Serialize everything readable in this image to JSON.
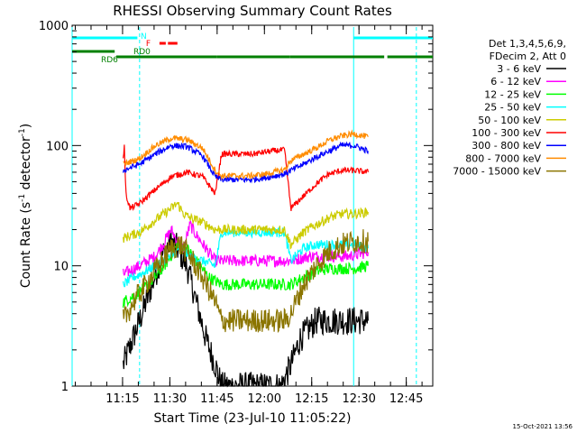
{
  "chart_data": {
    "type": "line",
    "title": "RHESSI Observing Summary Count Rates",
    "xlabel": "Start Time (23-Jul-10 11:05:22)",
    "ylabel": "Count Rate (s⁻¹ detector⁻¹)",
    "ylabel_parts": {
      "pre": "Count Rate (s",
      "sup1": "-1",
      "mid": " detector",
      "sup2": "-1",
      "post": ")"
    },
    "yscale": "log",
    "ylim": [
      1,
      1000
    ],
    "xlim_minutes": [
      -1.4,
      113.0
    ],
    "x_ticks": [
      {
        "t": 14.6,
        "label": "11:15"
      },
      {
        "t": 29.6,
        "label": "11:30"
      },
      {
        "t": 44.6,
        "label": "11:45"
      },
      {
        "t": 59.6,
        "label": "12:00"
      },
      {
        "t": 74.6,
        "label": "12:15"
      },
      {
        "t": 89.6,
        "label": "12:30"
      },
      {
        "t": 104.6,
        "label": "12:45"
      }
    ],
    "y_ticks": [
      {
        "v": 1,
        "label": "1"
      },
      {
        "v": 10,
        "label": "10"
      },
      {
        "v": 100,
        "label": "100"
      },
      {
        "v": 1000,
        "label": "1000"
      }
    ],
    "legend": {
      "header1": "Det 1,3,4,5,6,9,",
      "header2": "FDecim 2, Att 0",
      "position": "right",
      "entries": [
        {
          "label": "3 - 6 keV",
          "color": "#000000"
        },
        {
          "label": "6 - 12 keV",
          "color": "#ff00ff"
        },
        {
          "label": "12 - 25 keV",
          "color": "#00ff00"
        },
        {
          "label": "25 - 50 keV",
          "color": "#00ffff"
        },
        {
          "label": "50 - 100 keV",
          "color": "#cccc00"
        },
        {
          "label": "100 - 300 keV",
          "color": "#ff0000"
        },
        {
          "label": "300 - 800 keV",
          "color": "#0000ff"
        },
        {
          "label": "800 - 7000 keV",
          "color": "#ff8c00"
        },
        {
          "label": "7000 - 15000 keV",
          "color": "#8b7500"
        }
      ]
    },
    "flag_bars": [
      {
        "label": "N",
        "color": "#00ffff",
        "segments": [
          [
            -1.4,
            19.3
          ],
          [
            87.9,
            113.0
          ]
        ]
      },
      {
        "label": "F",
        "color": "#ff0000",
        "segments": [
          [
            26.3,
            28.3
          ],
          [
            29.0,
            32.0
          ]
        ]
      },
      {
        "label": "RD0",
        "color": "#008000",
        "segments": [
          [
            -1.4,
            12.1
          ]
        ]
      },
      {
        "label": "RD6",
        "color": "#008000",
        "segments": [
          [
            12.6,
            44.6
          ],
          [
            44.6,
            67.6
          ],
          [
            67.6,
            97.6
          ],
          [
            98.6,
            113.0
          ]
        ]
      }
    ],
    "vertical_lines": [
      {
        "t": -1.4,
        "color": "#00ffff",
        "style": "solid"
      },
      {
        "t": 20.0,
        "color": "#00ffff",
        "style": "dashed"
      },
      {
        "t": 87.9,
        "color": "#00ffff",
        "style": "solid"
      },
      {
        "t": 107.8,
        "color": "#00ffff",
        "style": "dashed"
      }
    ],
    "data_interval_minutes": [
      14.8,
      92.5
    ],
    "series": [
      {
        "name": "3 - 6 keV",
        "color": "#000000",
        "noise": 0.12,
        "x": [
          14.8,
          20,
          24,
          27,
          30,
          32,
          35,
          38,
          41,
          44,
          46,
          55,
          60,
          65,
          68,
          71,
          76,
          80,
          84,
          88,
          92.5
        ],
        "y": [
          1.5,
          3.5,
          7,
          12,
          16,
          14,
          10,
          5,
          2.5,
          1.5,
          1,
          1,
          1,
          1,
          1.5,
          2.5,
          3.5,
          3.5,
          3.5,
          3.5,
          3.5
        ]
      },
      {
        "name": "6 - 12 keV",
        "color": "#ff00ff",
        "noise": 0.05,
        "x": [
          14.8,
          20,
          25,
          28,
          30,
          32,
          34,
          36,
          38,
          41,
          44,
          46,
          55,
          60,
          66,
          68,
          74,
          80,
          86,
          92.5
        ],
        "y": [
          8.5,
          10,
          12,
          16,
          20,
          16,
          14,
          22,
          18,
          14,
          11,
          11,
          11,
          11,
          11,
          11,
          12,
          12,
          12,
          13
        ]
      },
      {
        "name": "12 - 25 keV",
        "color": "#00ff00",
        "noise": 0.05,
        "x": [
          14.8,
          20,
          25,
          29,
          32,
          35,
          38,
          42,
          46,
          55,
          60,
          66,
          68,
          72,
          76,
          80,
          84,
          88,
          92.5
        ],
        "y": [
          5,
          6,
          8,
          11,
          15,
          14,
          11,
          8,
          7,
          7,
          7,
          7,
          7,
          8,
          9,
          9.5,
          9.5,
          9.5,
          10
        ]
      },
      {
        "name": "25 - 50 keV",
        "color": "#00ffff",
        "noise": 0.04,
        "x": [
          14.8,
          18,
          22,
          26,
          30,
          33,
          36,
          40,
          44,
          46,
          55,
          60,
          66,
          68,
          72,
          76,
          80,
          84,
          88,
          92.5
        ],
        "y": [
          7,
          8,
          9,
          10.5,
          12,
          14,
          12,
          11,
          10,
          19,
          19,
          19,
          19,
          11,
          14,
          15,
          15,
          15,
          15,
          14
        ]
      },
      {
        "name": "50 - 100 keV",
        "color": "#cccc00",
        "noise": 0.04,
        "x": [
          14.8,
          20,
          25,
          30,
          32,
          34,
          36,
          40,
          44,
          46,
          55,
          60,
          66,
          68,
          72,
          76,
          80,
          84,
          88,
          92.5
        ],
        "y": [
          17,
          19,
          24,
          30,
          33,
          27,
          25,
          23,
          20,
          20,
          20,
          20,
          20,
          15,
          19,
          22,
          25,
          27,
          27,
          28
        ]
      },
      {
        "name": "100 - 300 keV",
        "color": "#ff0000",
        "noise": 0.025,
        "x": [
          14.8,
          15.2,
          15.6,
          17,
          20,
          25,
          30,
          35,
          40,
          44,
          46,
          50,
          56,
          62,
          66,
          68,
          72,
          76,
          80,
          84,
          88,
          92.5
        ],
        "y": [
          80,
          100,
          40,
          30,
          33,
          43,
          55,
          60,
          55,
          40,
          85,
          85,
          85,
          90,
          92,
          30,
          38,
          48,
          58,
          62,
          62,
          60
        ]
      },
      {
        "name": "300 - 800 keV",
        "color": "#0000ff",
        "noise": 0.025,
        "x": [
          14.8,
          20,
          25,
          30,
          35,
          40,
          44,
          46,
          55,
          60,
          66,
          68,
          72,
          76,
          80,
          84,
          88,
          92.5
        ],
        "y": [
          62,
          70,
          85,
          100,
          98,
          82,
          55,
          52,
          52,
          54,
          58,
          62,
          70,
          80,
          90,
          100,
          100,
          90
        ]
      },
      {
        "name": "800 - 7000 keV",
        "color": "#ff8c00",
        "noise": 0.025,
        "x": [
          14.8,
          20,
          25,
          30,
          35,
          40,
          44,
          46,
          55,
          60,
          66,
          68,
          72,
          76,
          80,
          84,
          88,
          92.5
        ],
        "y": [
          70,
          78,
          100,
          115,
          112,
          95,
          62,
          56,
          56,
          58,
          63,
          75,
          85,
          95,
          110,
          120,
          125,
          118
        ]
      },
      {
        "name": "7000 - 15000 keV",
        "color": "#8b7500",
        "noise": 0.1,
        "x": [
          14.8,
          18,
          22,
          26,
          30,
          33,
          36,
          40,
          44,
          46,
          55,
          60,
          66,
          68,
          72,
          76,
          80,
          84,
          88,
          92.5
        ],
        "y": [
          3.5,
          5,
          7,
          10,
          14,
          15,
          12,
          8,
          5,
          3.5,
          3.5,
          3.5,
          3.5,
          4,
          7,
          10,
          13,
          15,
          16,
          16
        ]
      }
    ],
    "footer_timestamp": "15-Oct-2021 13:56"
  }
}
